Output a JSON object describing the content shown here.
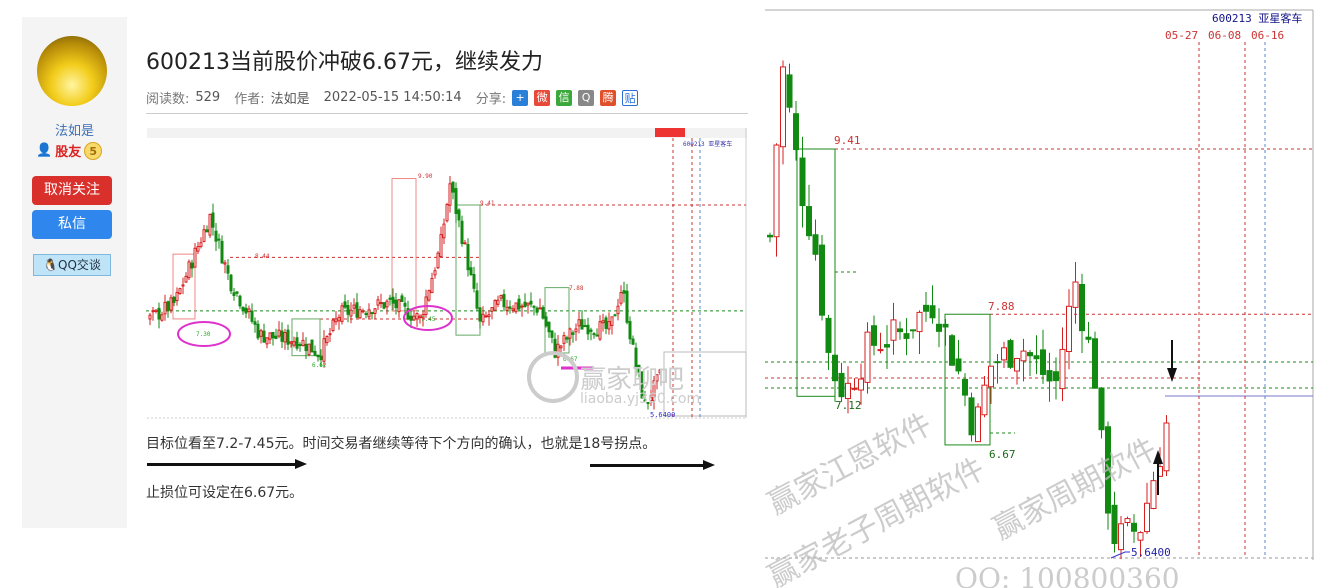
{
  "sidebar": {
    "username": "法如是",
    "role": "股友",
    "level": "5",
    "unfollow": "取消关注",
    "message": "私信",
    "qq_chat": "QQ交谈"
  },
  "article": {
    "title": "600213当前股价冲破6.67元，继续发力",
    "reads_label": "阅读数:",
    "reads": "529",
    "author_label": "作者:",
    "author": "法如是",
    "date": "2022-05-15 14:50:14",
    "share_label": "分享:",
    "share_icons": [
      "plus-share-icon",
      "weibo-icon",
      "wechat-icon",
      "qq-icon",
      "tencent-weibo-icon",
      "tieba-icon"
    ],
    "paragraph1": "目标位看至7.2-7.45元。时间交易者继续等待下个方向的确认，也就是18号拐点。",
    "paragraph2": "止损位可设定在6.67元。"
  },
  "small_chart": {
    "labels": [
      "9.90",
      "9.41",
      "8.44",
      "7.88",
      "7.30",
      "7.45",
      "6.62",
      "6.67",
      "5.6400"
    ],
    "watermark": "赢家聊吧",
    "watermark_url": "liaoba.yj360.com"
  },
  "large_chart": {
    "stock": "600213 亚星客车",
    "dates": [
      "05-27",
      "06-08",
      "06-16"
    ],
    "levels": {
      "high_box": "9.41",
      "mid_box": "7.88",
      "low1": "7.12",
      "low2": "6.67",
      "bottom": "5.6400"
    },
    "watermarks": [
      "赢家江恩软件",
      "赢家周期软件",
      "赢家老子周期软件",
      "QQ: 100800360"
    ],
    "colors": {
      "up": "#d62020",
      "down": "#128a12",
      "grid_red": "#c33",
      "grid_green": "#1a8a1a"
    }
  }
}
